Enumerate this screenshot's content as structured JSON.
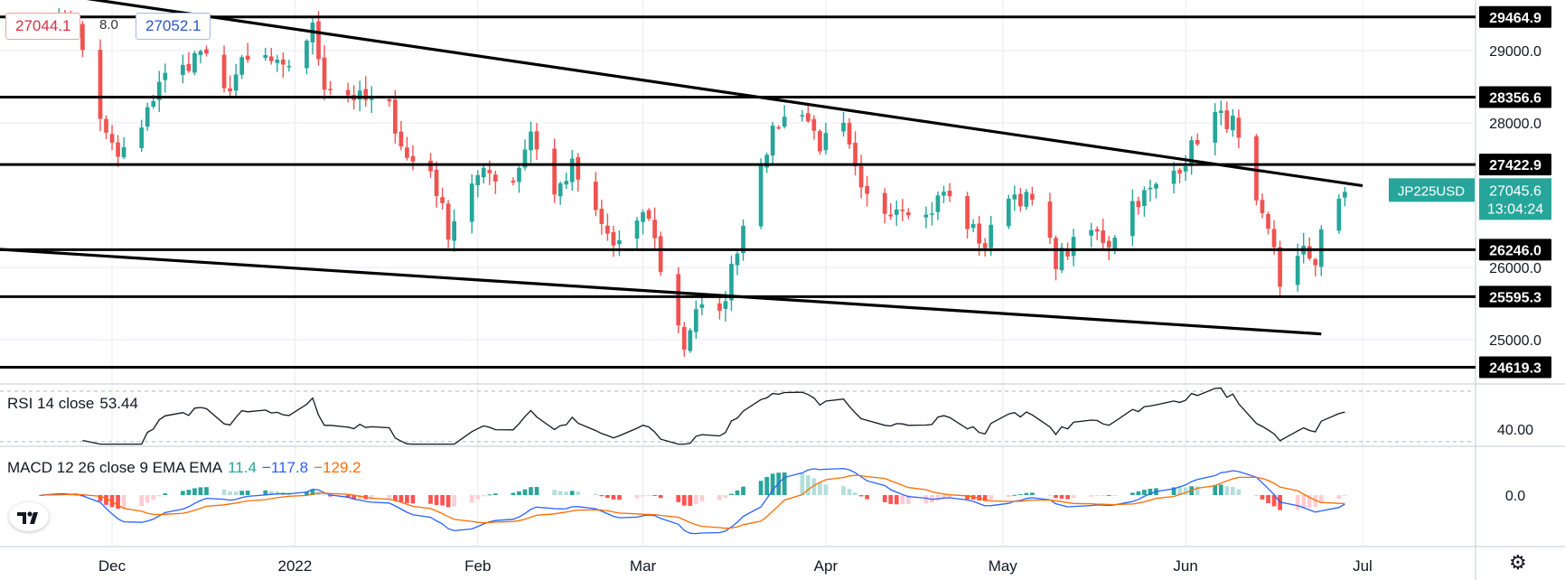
{
  "header": {
    "bid": "27044.1",
    "spread": "8.0",
    "ask": "27052.1"
  },
  "colors": {
    "up": "#26a69a",
    "down": "#ef5350",
    "rsi": "#131722",
    "macd_line": "#2962ff",
    "signal_line": "#ff6d00",
    "hist_pos_strong": "#26a69a",
    "hist_pos_weak": "#b2dfdb",
    "hist_neg_strong": "#ff5252",
    "hist_neg_weak": "#ffcdd2",
    "tag_bg": "#26a69a",
    "level": "#000000"
  },
  "chart_data": [
    {
      "type": "candlestick",
      "symbol": "JP225USD",
      "last_price": "27045.6",
      "countdown": "13:04:24",
      "price_ticks": [
        "29000.0",
        "28000.0",
        "26000.0",
        "25000.0"
      ],
      "ylim": [
        24400,
        29700
      ],
      "x_labels": [
        {
          "label": "Dec",
          "date": "2021-12-01"
        },
        {
          "label": "2022",
          "date": "2022-01-01"
        },
        {
          "label": "Feb",
          "date": "2022-02-01"
        },
        {
          "label": "Mar",
          "date": "2022-03-01"
        },
        {
          "label": "Apr",
          "date": "2022-04-01"
        },
        {
          "label": "May",
          "date": "2022-05-01"
        },
        {
          "label": "Jun",
          "date": "2022-06-01"
        },
        {
          "label": "Jul",
          "date": "2022-07-01"
        }
      ],
      "xlim": [
        "2021-11-12",
        "2022-07-20"
      ],
      "horizontal_levels": [
        "29464.9",
        "28356.6",
        "27422.9",
        "26246.0",
        "25595.3",
        "24619.3"
      ],
      "trendlines": [
        {
          "start": [
            "2021-11-20",
            29800
          ],
          "end": [
            "2022-07-01",
            27130
          ]
        },
        {
          "start": [
            "2021-11-12",
            26250
          ],
          "end": [
            "2022-06-24",
            25080
          ]
        }
      ],
      "anchors": [
        [
          "2021-11-19",
          29420
        ],
        [
          "2021-11-23",
          29400
        ],
        [
          "2021-11-25",
          29300
        ],
        [
          "2021-11-30",
          27800
        ],
        [
          "2021-12-02",
          27520
        ],
        [
          "2021-12-06",
          27900
        ],
        [
          "2021-12-09",
          28600
        ],
        [
          "2021-12-13",
          28750
        ],
        [
          "2021-12-16",
          29000
        ],
        [
          "2021-12-20",
          28400
        ],
        [
          "2021-12-23",
          28800
        ],
        [
          "2021-12-27",
          28900
        ],
        [
          "2021-12-30",
          28700
        ],
        [
          "2022-01-04",
          29300
        ],
        [
          "2022-01-06",
          28550
        ],
        [
          "2022-01-10",
          28400
        ],
        [
          "2022-01-13",
          28300
        ],
        [
          "2022-01-17",
          28200
        ],
        [
          "2022-01-20",
          27500
        ],
        [
          "2022-01-24",
          27350
        ],
        [
          "2022-01-27",
          26500
        ],
        [
          "2022-01-31",
          27200
        ],
        [
          "2022-02-03",
          27300
        ],
        [
          "2022-02-07",
          27200
        ],
        [
          "2022-02-10",
          27900
        ],
        [
          "2022-02-14",
          27000
        ],
        [
          "2022-02-17",
          27400
        ],
        [
          "2022-02-21",
          26700
        ],
        [
          "2022-02-24",
          26300
        ],
        [
          "2022-02-28",
          26600
        ],
        [
          "2022-03-02",
          26700
        ],
        [
          "2022-03-04",
          26000
        ],
        [
          "2022-03-08",
          24900
        ],
        [
          "2022-03-10",
          25450
        ],
        [
          "2022-03-14",
          25300
        ],
        [
          "2022-03-17",
          26300
        ],
        [
          "2022-03-21",
          27500
        ],
        [
          "2022-03-24",
          28000
        ],
        [
          "2022-03-28",
          28200
        ],
        [
          "2022-03-31",
          27700
        ],
        [
          "2022-04-04",
          27900
        ],
        [
          "2022-04-07",
          27000
        ],
        [
          "2022-04-11",
          26800
        ],
        [
          "2022-04-14",
          26900
        ],
        [
          "2022-04-18",
          26700
        ],
        [
          "2022-04-21",
          27050
        ],
        [
          "2022-04-25",
          26600
        ],
        [
          "2022-04-28",
          26300
        ],
        [
          "2022-05-02",
          27050
        ],
        [
          "2022-05-06",
          26900
        ],
        [
          "2022-05-10",
          26100
        ],
        [
          "2022-05-13",
          26300
        ],
        [
          "2022-05-16",
          26500
        ],
        [
          "2022-05-19",
          26350
        ],
        [
          "2022-05-23",
          26900
        ],
        [
          "2022-05-27",
          27100
        ],
        [
          "2022-06-01",
          27500
        ],
        [
          "2022-06-03",
          27800
        ],
        [
          "2022-06-06",
          28100
        ],
        [
          "2022-06-09",
          28000
        ],
        [
          "2022-06-13",
          26800
        ],
        [
          "2022-06-16",
          26300
        ],
        [
          "2022-06-17",
          25800
        ],
        [
          "2022-06-21",
          26200
        ],
        [
          "2022-06-23",
          26100
        ],
        [
          "2022-06-24",
          26550
        ],
        [
          "2022-06-27",
          26850
        ],
        [
          "2022-06-28",
          27045.6
        ]
      ]
    },
    {
      "type": "line",
      "name": "RSI 14 close",
      "value": "53.44",
      "ticks": [
        "40.00"
      ],
      "ylim": [
        27,
        75
      ],
      "bands": [
        30,
        70
      ]
    },
    {
      "type": "bar+line",
      "name": "MACD 12 26 close 9 EMA EMA",
      "values": [
        "11.4",
        "−117.8",
        "−129.2"
      ],
      "ticks": [
        "0.0"
      ],
      "scale_max": 680
    }
  ]
}
